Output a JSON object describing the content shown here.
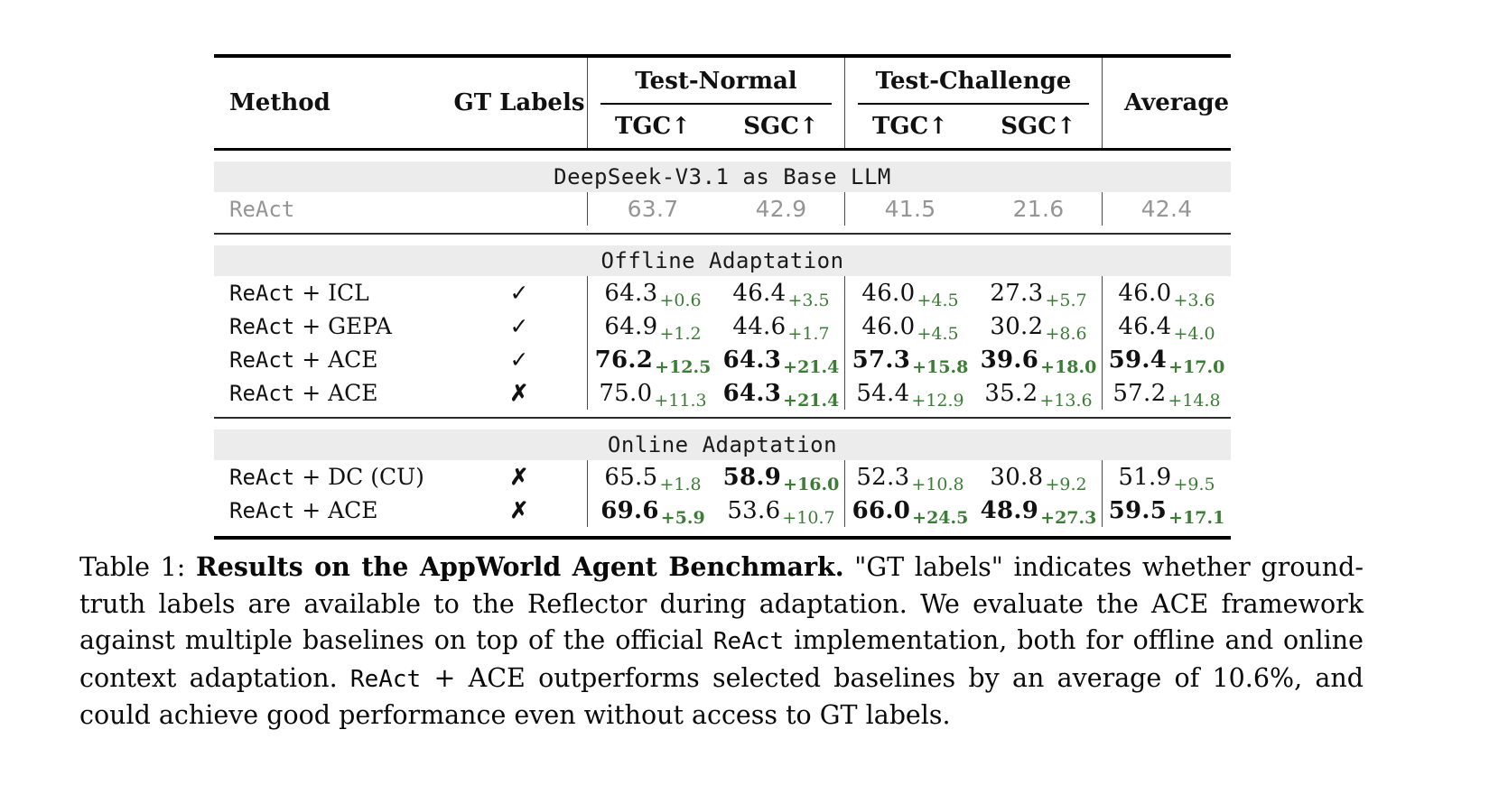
{
  "colors": {
    "delta_green": "#3b7d35",
    "band_gray": "#ececec",
    "baseline_gray": "#959595",
    "rule_black": "#000000"
  },
  "table": {
    "headers": {
      "method": "Method",
      "gt_labels": "GT Labels",
      "test_normal": "Test-Normal",
      "test_challenge": "Test-Challenge",
      "average": "Average",
      "sub": [
        "TGC↑",
        "SGC↑",
        "TGC↑",
        "SGC↑"
      ]
    },
    "sections": [
      {
        "band": "DeepSeek-V3.1 as Base LLM",
        "rows": [
          {
            "method": "ReAct",
            "suffix": "",
            "gt": "",
            "gray": true,
            "cells": [
              {
                "v": "63.7"
              },
              {
                "v": "42.9"
              },
              {
                "v": "41.5"
              },
              {
                "v": "21.6"
              },
              {
                "v": "42.4"
              }
            ]
          }
        ]
      },
      {
        "band": "Offline Adaptation",
        "rows": [
          {
            "method": "ReAct",
            "suffix": " + ICL",
            "gt": "✓",
            "cells": [
              {
                "v": "64.3",
                "d": "+0.6"
              },
              {
                "v": "46.4",
                "d": "+3.5"
              },
              {
                "v": "46.0",
                "d": "+4.5"
              },
              {
                "v": "27.3",
                "d": "+5.7"
              },
              {
                "v": "46.0",
                "d": "+3.6"
              }
            ]
          },
          {
            "method": "ReAct",
            "suffix": " + GEPA",
            "gt": "✓",
            "cells": [
              {
                "v": "64.9",
                "d": "+1.2"
              },
              {
                "v": "44.6",
                "d": "+1.7"
              },
              {
                "v": "46.0",
                "d": "+4.5"
              },
              {
                "v": "30.2",
                "d": "+8.6"
              },
              {
                "v": "46.4",
                "d": "+4.0"
              }
            ]
          },
          {
            "method": "ReAct",
            "suffix": " + ACE",
            "gt": "✓",
            "cells": [
              {
                "v": "76.2",
                "d": "+12.5",
                "b": true
              },
              {
                "v": "64.3",
                "d": "+21.4",
                "b": true
              },
              {
                "v": "57.3",
                "d": "+15.8",
                "b": true
              },
              {
                "v": "39.6",
                "d": "+18.0",
                "b": true
              },
              {
                "v": "59.4",
                "d": "+17.0",
                "b": true
              }
            ]
          },
          {
            "method": "ReAct",
            "suffix": " + ACE",
            "gt": "✗",
            "cells": [
              {
                "v": "75.0",
                "d": "+11.3"
              },
              {
                "v": "64.3",
                "d": "+21.4",
                "b": true
              },
              {
                "v": "54.4",
                "d": "+12.9"
              },
              {
                "v": "35.2",
                "d": "+13.6"
              },
              {
                "v": "57.2",
                "d": "+14.8"
              }
            ]
          }
        ]
      },
      {
        "band": "Online Adaptation",
        "rows": [
          {
            "method": "ReAct",
            "suffix": " + DC (CU)",
            "gt": "✗",
            "cells": [
              {
                "v": "65.5",
                "d": "+1.8"
              },
              {
                "v": "58.9",
                "d": "+16.0",
                "b": true
              },
              {
                "v": "52.3",
                "d": "+10.8"
              },
              {
                "v": "30.8",
                "d": "+9.2"
              },
              {
                "v": "51.9",
                "d": "+9.5"
              }
            ]
          },
          {
            "method": "ReAct",
            "suffix": " + ACE",
            "gt": "✗",
            "cells": [
              {
                "v": "69.6",
                "d": "+5.9",
                "b": true
              },
              {
                "v": "53.6",
                "d": "+10.7"
              },
              {
                "v": "66.0",
                "d": "+24.5",
                "b": true
              },
              {
                "v": "48.9",
                "d": "+27.3",
                "b": true
              },
              {
                "v": "59.5",
                "d": "+17.1",
                "b": true
              }
            ]
          }
        ]
      }
    ]
  },
  "caption": {
    "segments": [
      {
        "text": "Table 1: ",
        "style": "normal"
      },
      {
        "text": "Results on the AppWorld Agent Benchmark.",
        "style": "bold"
      },
      {
        "text": " \"GT labels\" indicates whether ground-truth labels are available to the Reflector during adaptation. We evaluate the ACE framework against multiple baselines on top of the official ",
        "style": "normal"
      },
      {
        "text": "ReAct",
        "style": "mono"
      },
      {
        "text": " implementation, both for offline and online context adaptation. ",
        "style": "normal"
      },
      {
        "text": "ReAct",
        "style": "mono"
      },
      {
        "text": " + ACE outperforms selected baselines by an average of 10.6%, and could achieve good performance even without access to GT labels.",
        "style": "normal"
      }
    ]
  }
}
